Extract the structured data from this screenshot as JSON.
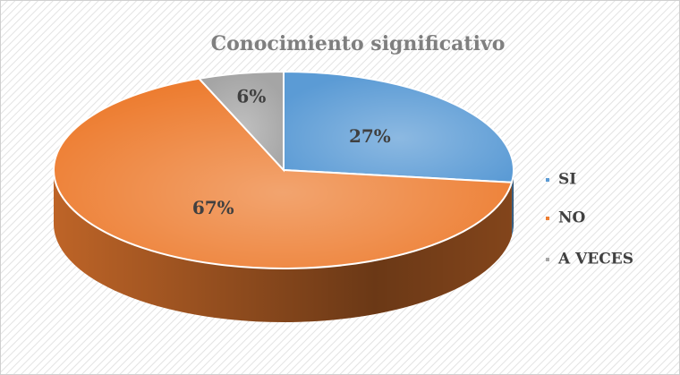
{
  "chart_data": {
    "type": "pie3d",
    "title": "Conocimiento significativo",
    "categories": [
      "SI",
      "NO",
      "A VECES"
    ],
    "values": [
      27,
      67,
      6
    ],
    "value_labels": [
      "27%",
      "67%",
      "6%"
    ],
    "colors": [
      "#5b9bd5",
      "#ed7d31",
      "#a5a5a5"
    ],
    "legend": "right"
  }
}
